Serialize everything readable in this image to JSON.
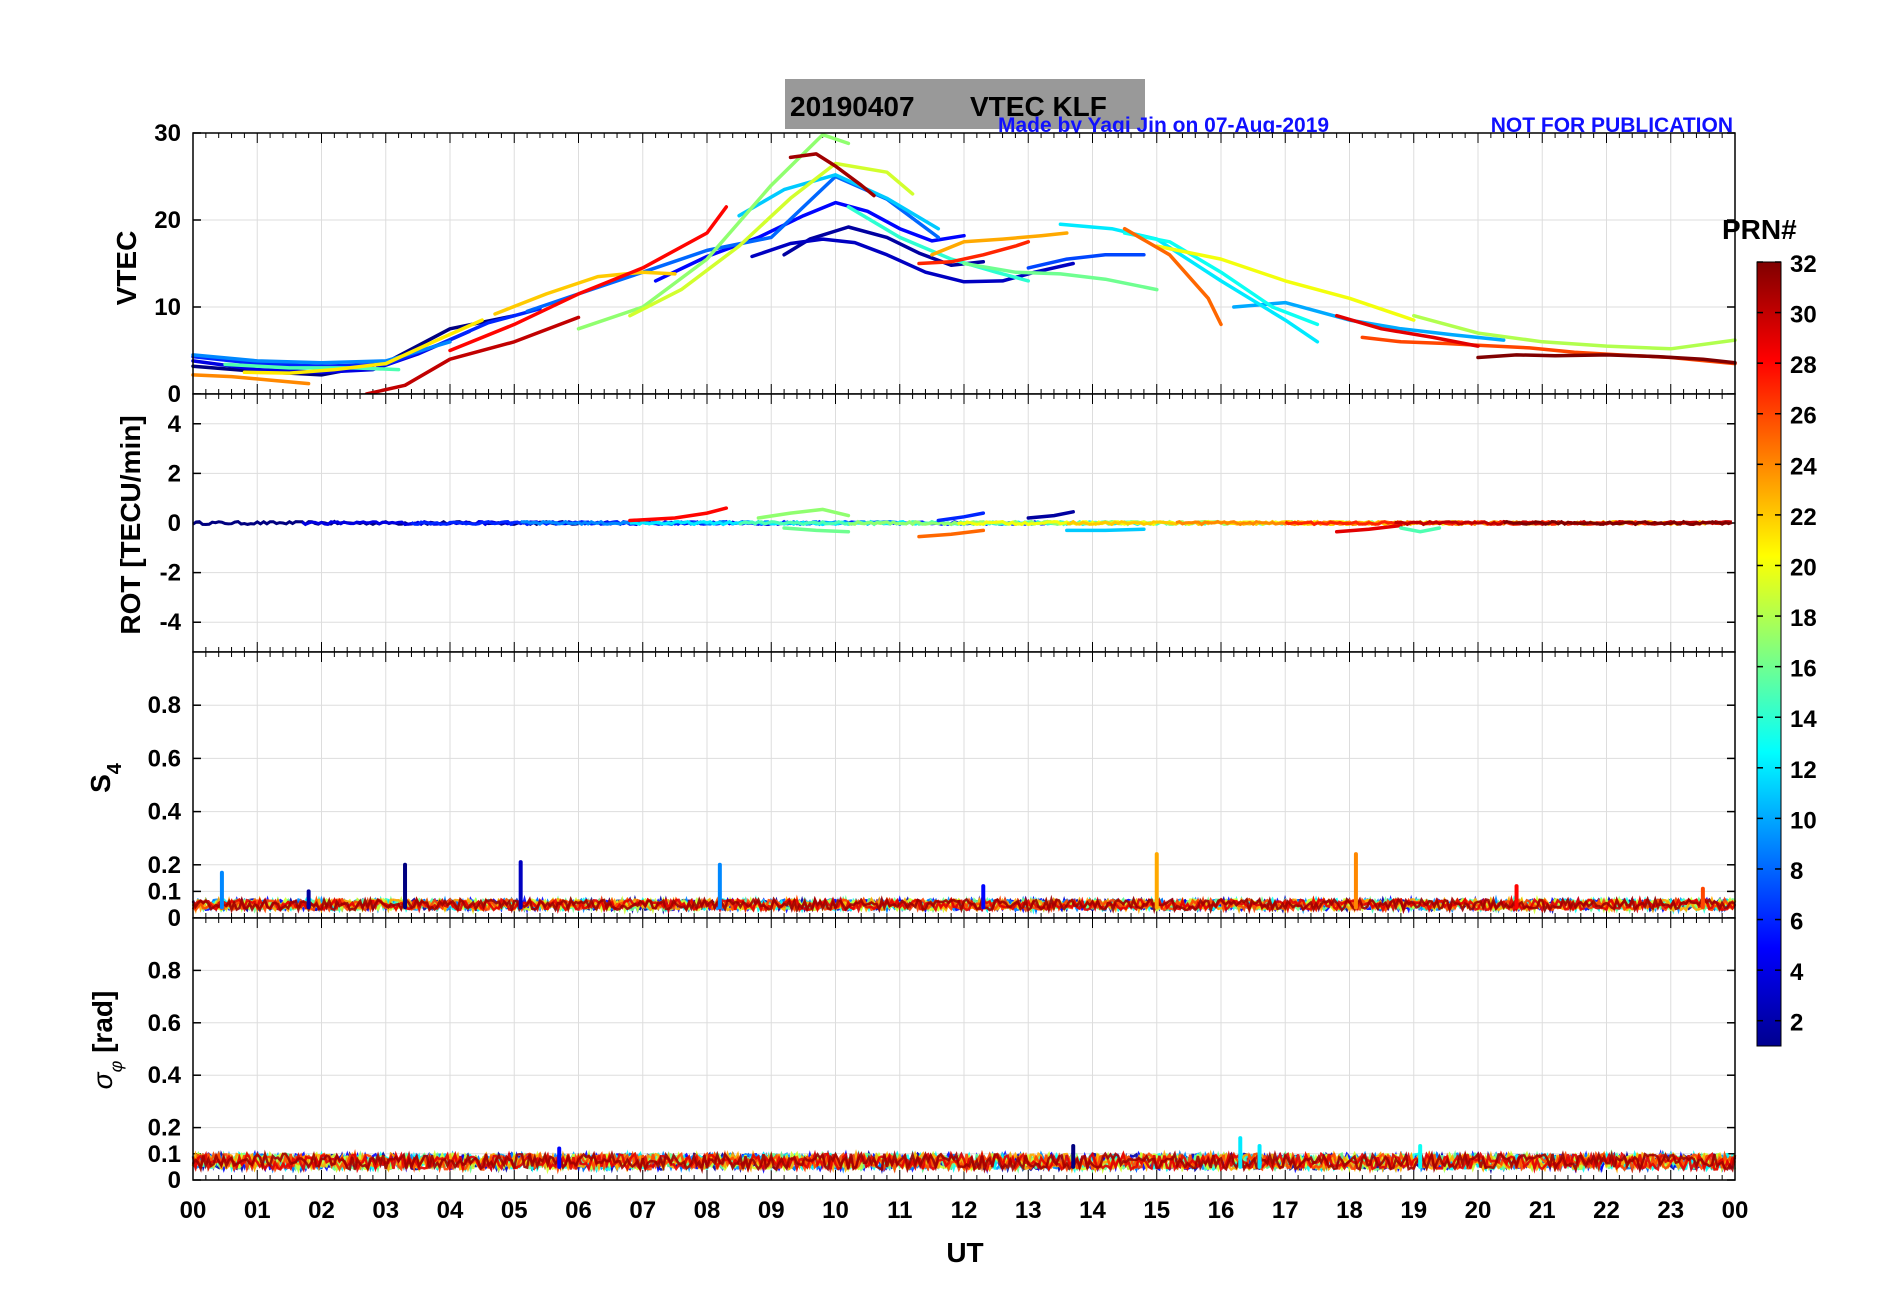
{
  "header": {
    "title_date": "20190407",
    "title_text": "VTEC  KLF",
    "credit": "Made by Yaqi Jin on 07-Aug-2019",
    "notice": "NOT FOR PUBLICATION"
  },
  "colorbar": {
    "label": "PRN#",
    "range": [
      1,
      32
    ],
    "ticks": [
      "2",
      "4",
      "6",
      "8",
      "10",
      "12",
      "14",
      "16",
      "18",
      "20",
      "22",
      "24",
      "26",
      "28",
      "30",
      "32"
    ],
    "colormap": "jet"
  },
  "xaxis": {
    "label": "UT",
    "range": [
      0,
      24
    ],
    "ticks": [
      "00",
      "01",
      "02",
      "03",
      "04",
      "05",
      "06",
      "07",
      "08",
      "09",
      "10",
      "11",
      "12",
      "13",
      "14",
      "15",
      "16",
      "17",
      "18",
      "19",
      "20",
      "21",
      "22",
      "23",
      "00"
    ]
  },
  "chart_data": [
    {
      "type": "line",
      "name": "vtec",
      "ylabel": "VTEC",
      "ylim": [
        0,
        30
      ],
      "yticks": [
        "0",
        "10",
        "20",
        "30"
      ],
      "grid": true,
      "series": [
        {
          "prn": 1,
          "x": [
            0,
            1,
            2,
            3,
            4,
            5
          ],
          "y": [
            3.2,
            2.6,
            2.2,
            3.6,
            7.5,
            9.0
          ]
        },
        {
          "prn": 2,
          "x": [
            9.2,
            9.6,
            10.2,
            10.8,
            11.3,
            11.8,
            12.3
          ],
          "y": [
            16,
            17.8,
            19.2,
            18.0,
            16.2,
            14.8,
            15.2
          ]
        },
        {
          "prn": 3,
          "x": [
            8.7,
            9.3,
            9.8,
            10.3,
            10.8,
            11.4,
            12.0,
            12.6,
            13.1,
            13.7
          ],
          "y": [
            15.8,
            17.3,
            17.8,
            17.4,
            16.0,
            14.0,
            12.9,
            13.0,
            14.0,
            15.0
          ]
        },
        {
          "prn": 4,
          "x": [
            0,
            1,
            2,
            2.8,
            3.5,
            4.3
          ],
          "y": [
            3.8,
            2.8,
            2.5,
            2.8,
            4.6,
            7.2
          ]
        },
        {
          "prn": 5,
          "x": [
            7.2,
            8.0,
            8.8,
            9.5,
            10.0,
            10.5,
            11.0,
            11.5,
            12.0
          ],
          "y": [
            13,
            15.8,
            18.0,
            20.5,
            22.0,
            21.0,
            19.0,
            17.6,
            18.2
          ]
        },
        {
          "prn": 6,
          "x": [
            0,
            1,
            2,
            3,
            3.8,
            4.6,
            5.4
          ],
          "y": [
            4.3,
            3.5,
            3.2,
            3.4,
            5.6,
            8.2,
            9.8
          ]
        },
        {
          "prn": 7,
          "x": [
            13.0,
            13.6,
            14.2,
            14.8
          ],
          "y": [
            14.5,
            15.5,
            16.0,
            16.0
          ]
        },
        {
          "prn": 8,
          "x": [
            5.2,
            6.0,
            7.0,
            8.0,
            9.0,
            10.0,
            10.8,
            11.6
          ],
          "y": [
            9.5,
            11.5,
            14.0,
            16.5,
            18.0,
            25.0,
            22.4,
            18.0
          ]
        },
        {
          "prn": 9,
          "x": [
            0,
            1,
            2,
            3,
            4
          ],
          "y": [
            4.5,
            3.8,
            3.6,
            3.8,
            6.0
          ]
        },
        {
          "prn": 10,
          "x": [
            16.2,
            17.0,
            18.0,
            18.8,
            19.6,
            20.4
          ],
          "y": [
            10.0,
            10.5,
            8.5,
            7.5,
            6.8,
            6.2
          ]
        },
        {
          "prn": 11,
          "x": [
            8.5,
            9.2,
            10.0,
            10.8,
            11.6
          ],
          "y": [
            20.5,
            23.5,
            25.2,
            22.5,
            19.0
          ]
        },
        {
          "prn": 12,
          "x": [
            13.5,
            14.3,
            15.0,
            16.0,
            17.0,
            17.5
          ],
          "y": [
            19.5,
            19.0,
            17.8,
            13.0,
            8.5,
            6.0
          ]
        },
        {
          "prn": 13,
          "x": [
            14.5,
            15.2,
            16.0,
            16.8,
            17.5
          ],
          "y": [
            18.5,
            17.5,
            14.0,
            10.0,
            8.0
          ]
        },
        {
          "prn": 14,
          "x": [
            10.2,
            11.0,
            11.8,
            12.5,
            13.0
          ],
          "y": [
            21.5,
            18.0,
            15.5,
            14.0,
            13.0
          ]
        },
        {
          "prn": 15,
          "x": [
            0.5,
            1.5,
            2.5,
            3.2
          ],
          "y": [
            3.4,
            3.0,
            3.0,
            2.8
          ]
        },
        {
          "prn": 16,
          "x": [
            12.0,
            12.8,
            13.5,
            14.2,
            15.0
          ],
          "y": [
            15.0,
            14.0,
            13.8,
            13.2,
            12.0
          ]
        },
        {
          "prn": 17,
          "x": [
            6.0,
            7.0,
            8.0,
            9.0,
            9.8,
            10.2
          ],
          "y": [
            7.5,
            10.0,
            15.5,
            24.0,
            29.8,
            28.8
          ]
        },
        {
          "prn": 18,
          "x": [
            19.0,
            20.0,
            21.0,
            22.0,
            23.0,
            24.0
          ],
          "y": [
            9.0,
            7.0,
            6.0,
            5.5,
            5.2,
            6.2
          ]
        },
        {
          "prn": 19,
          "x": [
            6.8,
            7.6,
            8.5,
            9.3,
            10.0,
            10.8,
            11.2
          ],
          "y": [
            9.0,
            12.0,
            17.0,
            22.5,
            26.5,
            25.5,
            23.0
          ]
        },
        {
          "prn": 20,
          "x": [
            15.0,
            16.0,
            17.0,
            18.0,
            19.0
          ],
          "y": [
            17.0,
            15.5,
            13.0,
            11.0,
            8.5
          ]
        },
        {
          "prn": 21,
          "x": [
            0.8,
            1.5,
            2.2,
            3.0,
            3.8,
            4.5
          ],
          "y": [
            2.5,
            2.4,
            2.8,
            3.5,
            6.2,
            8.5
          ]
        },
        {
          "prn": 22,
          "x": [
            4.7,
            5.5,
            6.3,
            7.0,
            7.5
          ],
          "y": [
            9.2,
            11.5,
            13.5,
            14.0,
            13.8
          ]
        },
        {
          "prn": 23,
          "x": [
            11.5,
            12.0,
            12.6,
            13.2,
            13.6
          ],
          "y": [
            16.0,
            17.5,
            17.8,
            18.2,
            18.5
          ]
        },
        {
          "prn": 24,
          "x": [
            0,
            0.6,
            1.2,
            1.8
          ],
          "y": [
            2.2,
            2.0,
            1.6,
            1.2
          ]
        },
        {
          "prn": 25,
          "x": [
            14.5,
            15.2,
            15.8,
            16.0
          ],
          "y": [
            19.0,
            16.0,
            11.0,
            8.0
          ]
        },
        {
          "prn": 26,
          "x": [
            18.2,
            18.8,
            19.5,
            20.0,
            20.8,
            21.5,
            22.2,
            23.0,
            24.0
          ],
          "y": [
            6.5,
            6.0,
            5.8,
            5.6,
            5.3,
            4.8,
            4.5,
            4.2,
            3.5
          ]
        },
        {
          "prn": 27,
          "x": [
            11.3,
            11.8,
            12.3,
            12.8,
            13.0
          ],
          "y": [
            15.0,
            15.2,
            16.0,
            17.0,
            17.5
          ]
        },
        {
          "prn": 28,
          "x": [
            4.0,
            5.0,
            6.0,
            7.0,
            8.0,
            8.3
          ],
          "y": [
            5.0,
            8.0,
            11.5,
            14.5,
            18.5,
            21.5
          ]
        },
        {
          "prn": 29,
          "x": [
            17.8,
            18.5,
            19.3,
            20.0
          ],
          "y": [
            9.0,
            7.5,
            6.5,
            5.5
          ]
        },
        {
          "prn": 30,
          "x": [
            2.7,
            3.3,
            4.0,
            5.0,
            6.0
          ],
          "y": [
            0.0,
            1.0,
            4.0,
            6.0,
            8.8
          ]
        },
        {
          "prn": 31,
          "x": [
            9.3,
            9.7,
            10.0,
            10.4,
            10.6
          ],
          "y": [
            27.2,
            27.6,
            26.2,
            24.0,
            22.8
          ]
        },
        {
          "prn": 32,
          "x": [
            20.0,
            20.6,
            21.2,
            22.0,
            22.8,
            23.5,
            24.0
          ],
          "y": [
            4.2,
            4.5,
            4.4,
            4.5,
            4.3,
            4.0,
            3.6
          ]
        }
      ]
    },
    {
      "type": "line",
      "name": "rot",
      "ylabel": "ROT [TECU/min]",
      "ylim": [
        -5.2,
        5.2
      ],
      "yticks": [
        "-4",
        "-2",
        "0",
        "2",
        "4"
      ],
      "grid": true,
      "baseline": 0,
      "features": [
        {
          "prn": 28,
          "x": [
            6.8,
            7.5,
            8.0,
            8.3
          ],
          "y": [
            0.1,
            0.2,
            0.4,
            0.6
          ]
        },
        {
          "prn": 17,
          "x": [
            8.8,
            9.3,
            9.8,
            10.2
          ],
          "y": [
            0.2,
            0.4,
            0.55,
            0.3
          ]
        },
        {
          "prn": 6,
          "x": [
            11.6,
            12.0,
            12.3
          ],
          "y": [
            0.1,
            0.25,
            0.4
          ]
        },
        {
          "prn": 2,
          "x": [
            13.0,
            13.4,
            13.7
          ],
          "y": [
            0.2,
            0.3,
            0.45
          ]
        },
        {
          "prn": 16,
          "x": [
            9.2,
            9.7,
            10.2
          ],
          "y": [
            -0.2,
            -0.3,
            -0.35
          ]
        },
        {
          "prn": 25,
          "x": [
            11.3,
            11.8,
            12.3
          ],
          "y": [
            -0.55,
            -0.45,
            -0.3
          ]
        },
        {
          "prn": 11,
          "x": [
            13.6,
            14.2,
            14.8
          ],
          "y": [
            -0.3,
            -0.3,
            -0.25
          ]
        },
        {
          "prn": 29,
          "x": [
            17.8,
            18.3,
            18.8
          ],
          "y": [
            -0.35,
            -0.25,
            -0.1
          ]
        },
        {
          "prn": 15,
          "x": [
            18.8,
            19.1,
            19.4
          ],
          "y": [
            -0.2,
            -0.35,
            -0.2
          ]
        }
      ]
    },
    {
      "type": "line",
      "name": "s4",
      "ylabel": "S4",
      "ylim": [
        0,
        1.0
      ],
      "yticks": [
        "0",
        "0.1",
        "0.2",
        "0.4",
        "0.6",
        "0.8"
      ],
      "grid": true,
      "baseline_range": [
        0.03,
        0.07
      ],
      "spikes": [
        {
          "prn": 9,
          "x": 0.45,
          "y": 0.17
        },
        {
          "prn": 2,
          "x": 1.8,
          "y": 0.1
        },
        {
          "prn": 1,
          "x": 3.3,
          "y": 0.2
        },
        {
          "prn": 3,
          "x": 5.1,
          "y": 0.21
        },
        {
          "prn": 9,
          "x": 8.2,
          "y": 0.2
        },
        {
          "prn": 5,
          "x": 12.3,
          "y": 0.12
        },
        {
          "prn": 23,
          "x": 15.0,
          "y": 0.24
        },
        {
          "prn": 24,
          "x": 18.1,
          "y": 0.24
        },
        {
          "prn": 28,
          "x": 20.6,
          "y": 0.12
        },
        {
          "prn": 26,
          "x": 23.5,
          "y": 0.11
        }
      ]
    },
    {
      "type": "line",
      "name": "sigma_phi",
      "ylabel": "σφ [rad]",
      "ylim": [
        0,
        1.0
      ],
      "yticks": [
        "0",
        "0.1",
        "0.2",
        "0.4",
        "0.6",
        "0.8"
      ],
      "grid": true,
      "baseline_range": [
        0.04,
        0.1
      ],
      "spikes": [
        {
          "prn": 5,
          "x": 5.7,
          "y": 0.12
        },
        {
          "prn": 1,
          "x": 13.7,
          "y": 0.13
        },
        {
          "prn": 12,
          "x": 16.3,
          "y": 0.16
        },
        {
          "prn": 12,
          "x": 16.6,
          "y": 0.13
        },
        {
          "prn": 13,
          "x": 19.1,
          "y": 0.13
        }
      ]
    }
  ]
}
